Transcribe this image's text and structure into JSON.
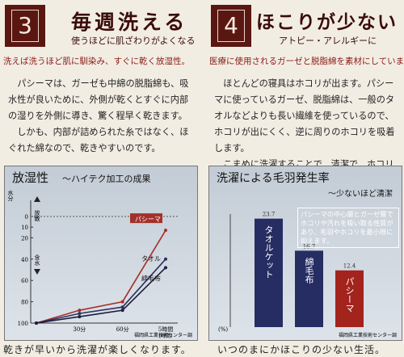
{
  "sections": [
    {
      "number": "3",
      "title": "毎週洗える",
      "subtitle": "使うほどに肌ざわりがよくなる",
      "banner": "洗えば洗うほど肌に馴染み、すぐに乾く放湿性。",
      "paragraphs": [
        "パシーマは、ガーゼも中綿の脱脂綿も、吸水性が良いために、外側が乾くとすぐに内部の湿りを外側に導き、驚く程早く乾きます。",
        "しかも、内部が詰められた糸ではなく、ほぐれた綿なので、乾きやすいのです。"
      ],
      "caption": "乾きが早いから洗濯が楽しくなります。"
    },
    {
      "number": "4",
      "title": "ほこりが少ない",
      "subtitle": "アトピー・アレルギーに",
      "banner": "医療に使用されるガーゼと脱脂綿を素材にしています。",
      "paragraphs": [
        "ほとんどの寝具はホコリが出ます。パシーマに使っているガーゼ、脱脂綿は、一般のタオルなどよりも長い繊維を使っているので、ホコリが出にくく、逆に周りのホコリを吸着します。",
        "こまめに洗濯することで、清潔で、ホコリの少ない生活を送ることが出来ます。"
      ],
      "caption": "いつのまにかほこりの少ない生活。"
    }
  ],
  "chart_data": [
    {
      "type": "line",
      "title": "放湿性",
      "subtitle": "～ハイテク加工の成果",
      "y_label": "水分",
      "annotations": [
        "放散",
        "含水"
      ],
      "x_unit": "(時間)",
      "categories": [
        null,
        "30分",
        "60分",
        "5時間"
      ],
      "series": [
        {
          "name": "パシーマ",
          "color": "#a3302a",
          "values": [
            100,
            88,
            80,
            13
          ]
        },
        {
          "name": "タオル",
          "color": "#2b3160",
          "values": [
            100,
            91,
            85,
            40
          ]
        },
        {
          "name": "綿毛布",
          "color": "#1c1d3c",
          "values": [
            100,
            94,
            88,
            48
          ]
        }
      ],
      "ylim": [
        100,
        0
      ],
      "yticks": [
        0,
        10,
        20,
        40,
        60,
        80,
        100
      ],
      "source": "福岡県工業技術センター調"
    },
    {
      "type": "bar",
      "title": "洗濯による毛羽発生率",
      "subtitle": "～少ないほど清潔",
      "y_label": "(%)",
      "annotation": "パシーマの中心層とガーゼ層でホコリや汚れを吸い取る性質があり、毛羽やホコリを最小限に抑えます。",
      "categories": [
        "タオルケット",
        "綿毛布",
        "パシーマ"
      ],
      "values": [
        23.7,
        16.7,
        12.4
      ],
      "colors": [
        "#262d63",
        "#262d63",
        "#a3231d"
      ],
      "ylim": [
        0,
        30
      ],
      "source": "福岡県工業技術センター調"
    }
  ]
}
